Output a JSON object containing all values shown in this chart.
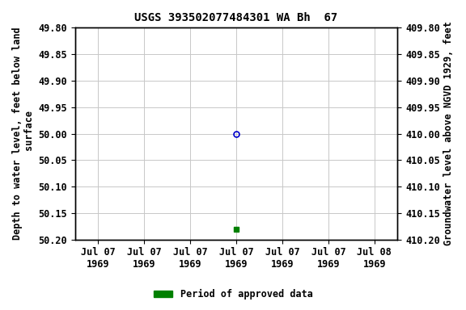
{
  "title": "USGS 393502077484301 WA Bh  67",
  "ylabel_left": "Depth to water level, feet below land\n surface",
  "ylabel_right": "Groundwater level above NGVD 1929, feet",
  "ylim_left": [
    49.8,
    50.2
  ],
  "ylim_right": [
    410.2,
    409.8
  ],
  "y_ticks_left": [
    49.8,
    49.85,
    49.9,
    49.95,
    50.0,
    50.05,
    50.1,
    50.15,
    50.2
  ],
  "y_ticks_right": [
    410.2,
    410.15,
    410.1,
    410.05,
    410.0,
    409.95,
    409.9,
    409.85,
    409.8
  ],
  "data_point_open": {
    "x": 3.0,
    "depth": 50.0
  },
  "data_point_filled": {
    "x": 3.0,
    "depth": 50.18
  },
  "open_marker_color": "#0000cc",
  "filled_marker_color": "#008000",
  "grid_color": "#c8c8c8",
  "bg_color": "#ffffff",
  "title_fontsize": 10,
  "tick_fontsize": 8.5,
  "ylabel_fontsize": 8.5,
  "legend_label": "Period of approved data",
  "legend_color": "#008000",
  "x_tick_positions": [
    0,
    1,
    2,
    3,
    4,
    5,
    6
  ],
  "x_tick_labels": [
    "Jul 07\n1969",
    "Jul 07\n1969",
    "Jul 07\n1969",
    "Jul 07\n1969",
    "Jul 07\n1969",
    "Jul 07\n1969",
    "Jul 08\n1969"
  ],
  "xlim": [
    -0.5,
    6.5
  ]
}
